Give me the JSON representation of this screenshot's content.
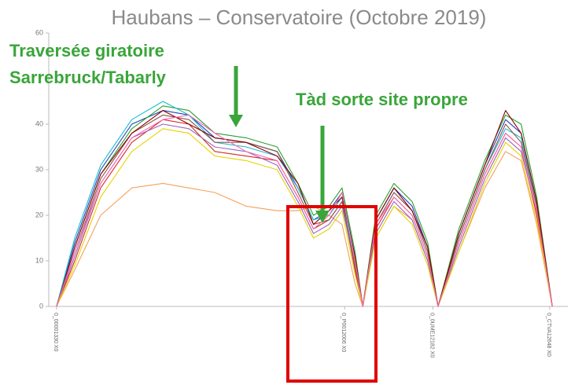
{
  "chart_data": {
    "type": "line",
    "title": "Haubans – Conservatoire (Octobre 2019)",
    "annotations": [
      "Traversée giratoire",
      "Sarrebruck/Tabarly",
      "Tàd sorte site propre"
    ],
    "x": [
      1.5,
      5,
      10,
      16,
      22,
      27,
      32,
      38,
      44,
      48,
      51,
      54,
      56.5,
      59,
      60.5,
      63,
      66.5,
      70,
      73,
      75,
      79,
      84,
      88,
      91,
      94,
      97
    ],
    "xlim": [
      0,
      100
    ],
    "xticks": [
      {
        "value": 1.5,
        "label": "0_00001330 X0"
      },
      {
        "value": 57,
        "label": "0_P0012006 X0"
      },
      {
        "value": 74,
        "label": "0_0UME12182 X0"
      },
      {
        "value": 96.5,
        "label": "0_CTVA12648 X0"
      }
    ],
    "ylim": [
      0,
      60
    ],
    "yticks": [
      0,
      10,
      20,
      30,
      40,
      60
    ],
    "series": [
      {
        "color": "#1f3fbf",
        "values": [
          0,
          14,
          30,
          40,
          43,
          42,
          37,
          36,
          34,
          26,
          19,
          21,
          25,
          11,
          0,
          19,
          26,
          22,
          13,
          0,
          16,
          31,
          41,
          38,
          23,
          0
        ]
      },
      {
        "color": "#d62728",
        "values": [
          0,
          10,
          26,
          36,
          41,
          40,
          34,
          33,
          32,
          24,
          17,
          19,
          23,
          8,
          0,
          17,
          24,
          20,
          11,
          0,
          14,
          29,
          38,
          35,
          20,
          0
        ]
      },
      {
        "color": "#2ca02c",
        "values": [
          0,
          13,
          29,
          39,
          44,
          43,
          38,
          37,
          35,
          27,
          20,
          22,
          26,
          12,
          0,
          20,
          27,
          23,
          14,
          0,
          17,
          32,
          42,
          40,
          24,
          0
        ]
      },
      {
        "color": "#f5a05a",
        "values": [
          0,
          8,
          20,
          26,
          27,
          26,
          25,
          22,
          21,
          21,
          22,
          20,
          18,
          5,
          0,
          15,
          22,
          19,
          10,
          0,
          12,
          26,
          34,
          32,
          18,
          0
        ]
      },
      {
        "color": "#9467bd",
        "values": [
          0,
          11,
          27,
          37,
          40,
          39,
          35,
          34,
          31,
          23,
          16,
          18,
          22,
          9,
          0,
          16,
          23,
          19,
          10,
          0,
          13,
          28,
          37,
          34,
          21,
          0
        ]
      },
      {
        "color": "#17becf",
        "values": [
          0,
          15,
          31,
          41,
          45,
          42,
          36,
          35,
          33,
          26,
          19,
          20,
          24,
          10,
          0,
          18,
          25,
          21,
          12,
          0,
          15,
          30,
          39,
          37,
          22,
          0
        ]
      },
      {
        "color": "#8c564b",
        "values": [
          0,
          12,
          28,
          38,
          42,
          41,
          36,
          36,
          34,
          25,
          18,
          19,
          23,
          9,
          0,
          18,
          25,
          21,
          12,
          0,
          15,
          30,
          40,
          36,
          22,
          0
        ]
      },
      {
        "color": "#e6d300",
        "values": [
          0,
          9,
          24,
          34,
          39,
          38,
          33,
          32,
          30,
          22,
          15,
          17,
          21,
          7,
          0,
          15,
          22,
          18,
          9,
          0,
          12,
          27,
          36,
          33,
          19,
          0
        ]
      },
      {
        "color": "#8b0000",
        "values": [
          0,
          13,
          29,
          38,
          43,
          40,
          37,
          36,
          33,
          27,
          18,
          21,
          24,
          11,
          0,
          19,
          26,
          21,
          13,
          0,
          16,
          31,
          43,
          38,
          23,
          0
        ]
      },
      {
        "color": "#ff69b4",
        "values": [
          0,
          12,
          27,
          37,
          41,
          42,
          38,
          34,
          32,
          24,
          17,
          20,
          25,
          10,
          0,
          18,
          24,
          20,
          11,
          0,
          14,
          29,
          38,
          35,
          21,
          0
        ]
      }
    ]
  }
}
